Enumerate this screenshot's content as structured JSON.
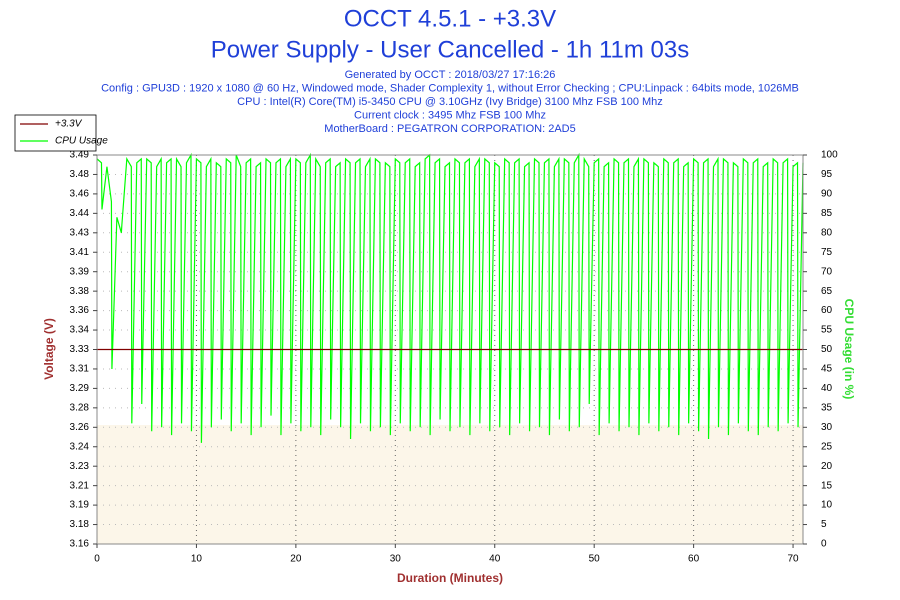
{
  "chart_data": {
    "type": "line",
    "title": "OCCT 4.5.1 - +3.3V",
    "subtitle": "Power Supply - User Cancelled - 1h 11m 03s",
    "info": [
      "Generated by OCCT : 2018/03/27 17:16:26",
      "Config : GPU3D : 1920 x 1080 @ 60 Hz, Windowed mode, Shader Complexity 1, without Error Checking ; CPU:Linpack : 64bits mode, 1026MB",
      "CPU : Intel(R) Core(TM) i5-3450 CPU @ 3.10GHz (Ivy Bridge) 3100 Mhz FSB 100 Mhz",
      "Current clock : 3495 Mhz FSB 100 Mhz",
      "MotherBoard : PEGATRON CORPORATION: 2AD5"
    ],
    "xlabel": "Duration (Minutes)",
    "ylabel": "Voltage (V)",
    "y2label": "CPU Usage (in %)",
    "xlim": [
      0,
      71
    ],
    "xticks": [
      0,
      10,
      20,
      30,
      40,
      50,
      60,
      70
    ],
    "ylim": [
      3.16,
      3.492
    ],
    "yticks": [
      {
        "value": 3.16,
        "label": "3.16"
      },
      {
        "value": 3.1766,
        "label": "3.18"
      },
      {
        "value": 3.1932,
        "label": "3.19"
      },
      {
        "value": 3.2098,
        "label": "3.21"
      },
      {
        "value": 3.2264,
        "label": "3.23"
      },
      {
        "value": 3.243,
        "label": "3.24"
      },
      {
        "value": 3.2596,
        "label": "3.26"
      },
      {
        "value": 3.2762,
        "label": "3.28"
      },
      {
        "value": 3.2928,
        "label": "3.29"
      },
      {
        "value": 3.3094,
        "label": "3.31"
      },
      {
        "value": 3.326,
        "label": "3.33"
      },
      {
        "value": 3.3426,
        "label": "3.34"
      },
      {
        "value": 3.3592,
        "label": "3.36"
      },
      {
        "value": 3.3758,
        "label": "3.38"
      },
      {
        "value": 3.3924,
        "label": "3.39"
      },
      {
        "value": 3.409,
        "label": "3.41"
      },
      {
        "value": 3.4256,
        "label": "3.43"
      },
      {
        "value": 3.4422,
        "label": "3.44"
      },
      {
        "value": 3.4588,
        "label": "3.46"
      },
      {
        "value": 3.4754,
        "label": "3.48"
      },
      {
        "value": 3.492,
        "label": "3.49"
      }
    ],
    "y2lim": [
      0,
      100
    ],
    "y2ticks": [
      0,
      5,
      10,
      15,
      20,
      25,
      30,
      35,
      40,
      45,
      50,
      55,
      60,
      65,
      70,
      75,
      80,
      85,
      90,
      95,
      100
    ],
    "grid": true,
    "legend": "top-left",
    "series": [
      {
        "name": "+3.3V",
        "color": "#800000",
        "x": [
          0,
          71
        ],
        "values": [
          3.326,
          3.326
        ]
      },
      {
        "name": "CPU Usage",
        "color": "#00ff00",
        "axis": "y2",
        "x": [
          0,
          0.45,
          0.5,
          1,
          1.45,
          1.5,
          2,
          2.45,
          2.5,
          3,
          3.45,
          3.5,
          4,
          4.45,
          4.5,
          5,
          5.45,
          5.5,
          6,
          6.45,
          6.5,
          7,
          7.45,
          7.5,
          8,
          8.45,
          8.5,
          9,
          9.45,
          9.5,
          10,
          10.45,
          10.5,
          11,
          11.45,
          11.5,
          12,
          12.45,
          12.5,
          13,
          13.45,
          13.5,
          14,
          14.45,
          14.5,
          15,
          15.45,
          15.5,
          16,
          16.45,
          16.5,
          17,
          17.45,
          17.5,
          18,
          18.45,
          18.5,
          19,
          19.45,
          19.5,
          20,
          20.45,
          20.5,
          21,
          21.45,
          21.5,
          22,
          22.45,
          22.5,
          23,
          23.45,
          23.5,
          24,
          24.45,
          24.5,
          25,
          25.45,
          25.5,
          26,
          26.45,
          26.5,
          27,
          27.45,
          27.5,
          28,
          28.45,
          28.5,
          29,
          29.45,
          29.5,
          30,
          30.45,
          30.5,
          31,
          31.45,
          31.5,
          32,
          32.45,
          32.5,
          33,
          33.45,
          33.5,
          34,
          34.45,
          34.5,
          35,
          35.45,
          35.5,
          36,
          36.45,
          36.5,
          37,
          37.45,
          37.5,
          38,
          38.45,
          38.5,
          39,
          39.45,
          39.5,
          40,
          40.45,
          40.5,
          41,
          41.45,
          41.5,
          42,
          42.45,
          42.5,
          43,
          43.45,
          43.5,
          44,
          44.45,
          44.5,
          45,
          45.45,
          45.5,
          46,
          46.45,
          46.5,
          47,
          47.45,
          47.5,
          48,
          48.45,
          48.5,
          49,
          49.45,
          49.5,
          50,
          50.45,
          50.5,
          51,
          51.45,
          51.5,
          52,
          52.45,
          52.5,
          53,
          53.45,
          53.5,
          54,
          54.45,
          54.5,
          55,
          55.45,
          55.5,
          56,
          56.45,
          56.5,
          57,
          57.45,
          57.5,
          58,
          58.45,
          58.5,
          59,
          59.45,
          59.5,
          60,
          60.45,
          60.5,
          61,
          61.45,
          61.5,
          62,
          62.45,
          62.5,
          63,
          63.45,
          63.5,
          64,
          64.45,
          64.5,
          65,
          65.45,
          65.5,
          66,
          66.45,
          66.5,
          67,
          67.45,
          67.5,
          68,
          68.45,
          68.5,
          69,
          69.45,
          69.5,
          70,
          70.45,
          70.5,
          71
        ],
        "values": [
          99,
          98,
          86,
          97,
          88,
          45,
          84,
          80,
          82,
          99,
          97,
          31,
          98,
          99,
          36,
          99,
          98,
          29,
          97,
          99,
          30,
          98,
          99,
          28,
          99,
          97,
          31,
          98,
          100,
          29,
          99,
          98,
          26,
          97,
          99,
          30,
          98,
          97,
          32,
          99,
          98,
          29,
          100,
          97,
          31,
          98,
          99,
          28,
          97,
          98,
          30,
          99,
          98,
          33,
          98,
          99,
          28,
          97,
          99,
          31,
          99,
          98,
          29,
          98,
          100,
          30,
          99,
          97,
          28,
          98,
          99,
          32,
          97,
          98,
          30,
          99,
          98,
          27,
          98,
          99,
          31,
          97,
          99,
          29,
          99,
          98,
          30,
          98,
          97,
          28,
          99,
          98,
          31,
          98,
          99,
          29,
          97,
          98,
          30,
          99,
          100,
          28,
          98,
          99,
          32,
          97,
          98,
          29,
          99,
          98,
          30,
          98,
          99,
          28,
          97,
          99,
          31,
          99,
          98,
          29,
          98,
          97,
          30,
          99,
          98,
          28,
          98,
          99,
          31,
          97,
          98,
          29,
          99,
          98,
          30,
          98,
          99,
          28,
          97,
          99,
          32,
          99,
          98,
          29,
          98,
          100,
          30,
          99,
          97,
          36,
          98,
          99,
          28,
          97,
          98,
          31,
          99,
          98,
          29,
          98,
          99,
          30,
          97,
          99,
          28,
          99,
          98,
          31,
          98,
          97,
          29,
          99,
          98,
          30,
          98,
          99,
          28,
          97,
          98,
          31,
          99,
          98,
          29,
          98,
          99,
          27,
          97,
          99,
          30,
          99,
          98,
          28,
          98,
          97,
          31,
          99,
          98,
          29,
          98,
          99,
          28,
          97,
          98,
          30,
          99,
          98,
          29,
          98,
          99,
          31,
          97,
          98,
          30,
          98
        ]
      }
    ]
  }
}
